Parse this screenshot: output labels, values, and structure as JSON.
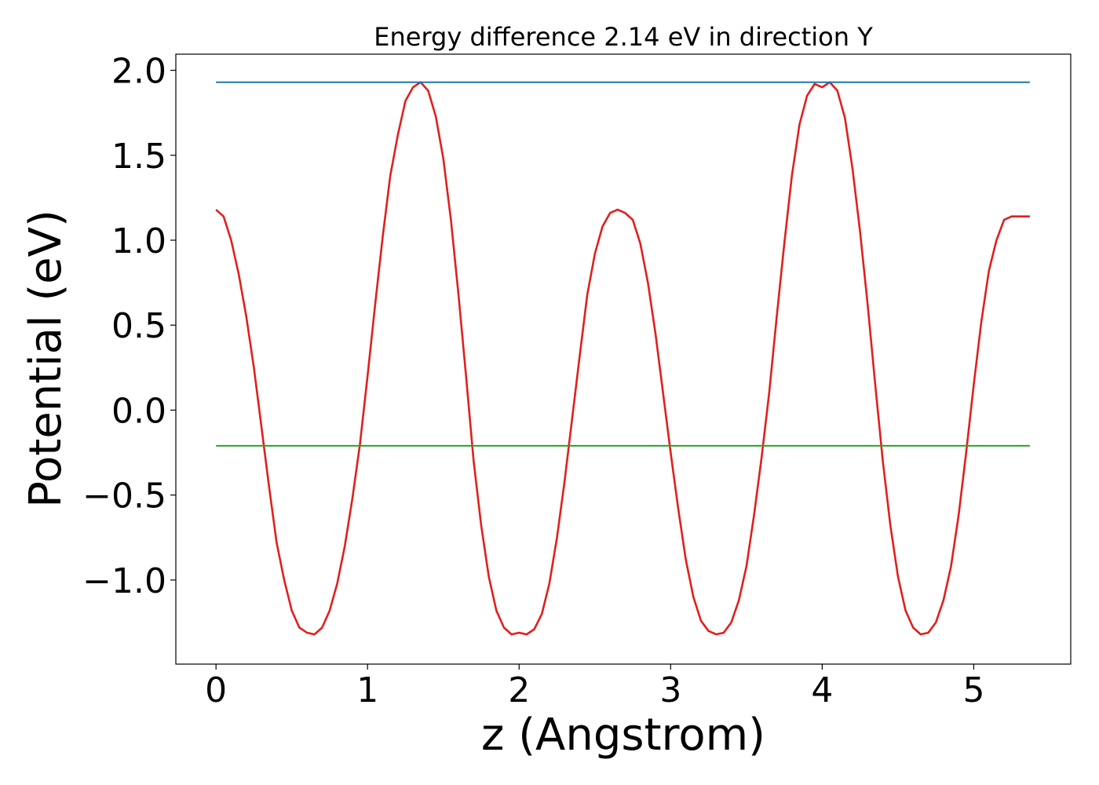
{
  "chart_data": {
    "type": "line",
    "title": "Energy difference 2.14 eV in direction Y",
    "xlabel": "z (Angstrom)",
    "ylabel": "Potential (eV)",
    "xlim": [
      -0.265,
      5.64
    ],
    "ylim": [
      -1.495,
      2.095
    ],
    "xticks": [
      0,
      1,
      2,
      3,
      4,
      5
    ],
    "xtick_labels": [
      "0",
      "1",
      "2",
      "3",
      "4",
      "5"
    ],
    "yticks": [
      -1.0,
      -0.5,
      0.0,
      0.5,
      1.0,
      1.5,
      2.0
    ],
    "ytick_labels": [
      "−1.0",
      "−0.5",
      "0.0",
      "0.5",
      "1.0",
      "1.5",
      "2.0"
    ],
    "grid": false,
    "colors": {
      "potential": "#e0201c",
      "upper_level": "#1f77b4",
      "lower_level": "#2ca02c"
    },
    "series": [
      {
        "x": [
          0,
          0.05,
          0.1,
          0.15,
          0.2,
          0.25,
          0.3,
          0.35,
          0.4,
          0.45,
          0.5,
          0.55,
          0.6,
          0.65,
          0.7,
          0.75,
          0.8,
          0.85,
          0.9,
          0.95,
          1.0,
          1.05,
          1.1,
          1.15,
          1.2,
          1.25,
          1.3,
          1.35,
          1.4,
          1.45,
          1.5,
          1.55,
          1.6,
          1.65,
          1.7,
          1.75,
          1.8,
          1.85,
          1.9,
          1.95,
          2.0,
          2.05,
          2.1,
          2.15,
          2.2,
          2.25,
          2.3,
          2.35,
          2.4,
          2.45,
          2.5,
          2.55,
          2.6,
          2.65,
          2.7,
          2.75,
          2.8,
          2.85,
          2.9,
          2.95,
          3.0,
          3.05,
          3.1,
          3.15,
          3.2,
          3.25,
          3.3,
          3.35,
          3.4,
          3.45,
          3.5,
          3.55,
          3.6,
          3.65,
          3.7,
          3.75,
          3.8,
          3.85,
          3.9,
          3.95,
          4.0,
          4.05,
          4.1,
          4.15,
          4.2,
          4.25,
          4.3,
          4.35,
          4.4,
          4.45,
          4.5,
          4.55,
          4.6,
          4.65,
          4.7,
          4.75,
          4.8,
          4.85,
          4.9,
          4.95,
          5.0,
          5.05,
          5.1,
          5.15,
          5.2,
          5.25,
          5.3,
          5.35,
          5.37
        ],
        "y": [
          1.18,
          1.14,
          1.0,
          0.8,
          0.55,
          0.25,
          -0.1,
          -0.45,
          -0.78,
          -1.0,
          -1.18,
          -1.28,
          -1.31,
          -1.32,
          -1.28,
          -1.18,
          -1.02,
          -0.8,
          -0.52,
          -0.2,
          0.2,
          0.62,
          1.02,
          1.38,
          1.62,
          1.82,
          1.9,
          1.93,
          1.88,
          1.73,
          1.48,
          1.12,
          0.68,
          0.2,
          -0.3,
          -0.68,
          -0.98,
          -1.18,
          -1.28,
          -1.32,
          -1.31,
          -1.32,
          -1.29,
          -1.2,
          -1.02,
          -0.75,
          -0.42,
          -0.05,
          0.32,
          0.68,
          0.92,
          1.08,
          1.16,
          1.18,
          1.16,
          1.12,
          0.98,
          0.75,
          0.45,
          0.1,
          -0.25,
          -0.58,
          -0.88,
          -1.1,
          -1.24,
          -1.3,
          -1.32,
          -1.31,
          -1.25,
          -1.12,
          -0.92,
          -0.62,
          -0.28,
          0.1,
          0.55,
          0.98,
          1.38,
          1.68,
          1.85,
          1.92,
          1.9,
          1.93,
          1.88,
          1.72,
          1.42,
          1.05,
          0.62,
          0.15,
          -0.3,
          -0.68,
          -0.98,
          -1.18,
          -1.28,
          -1.32,
          -1.31,
          -1.25,
          -1.12,
          -0.92,
          -0.62,
          -0.25,
          0.15,
          0.52,
          0.82,
          1.0,
          1.12,
          1.14,
          1.14,
          1.14,
          1.14
        ]
      },
      {
        "x": [
          0,
          5.37
        ],
        "y": [
          1.93,
          1.93
        ]
      },
      {
        "x": [
          0,
          5.37
        ],
        "y": [
          -0.21,
          -0.21
        ]
      }
    ]
  }
}
